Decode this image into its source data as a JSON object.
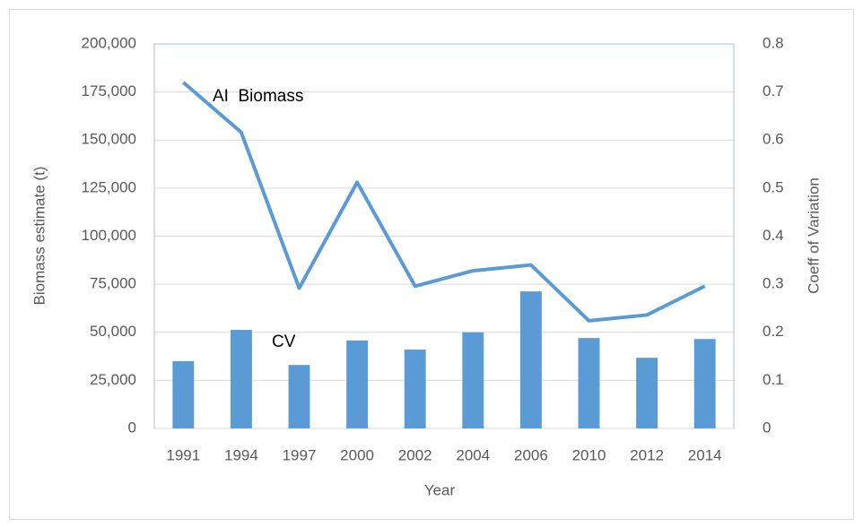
{
  "chart_data": {
    "type": "bar-line",
    "categories": [
      "1991",
      "1994",
      "1997",
      "2000",
      "2002",
      "2004",
      "2006",
      "2010",
      "2012",
      "2014"
    ],
    "series": [
      {
        "name": "CV",
        "type": "bar",
        "axis": "y2",
        "color": "#5b9bd5",
        "values": [
          0.14,
          0.205,
          0.132,
          0.183,
          0.164,
          0.2,
          0.285,
          0.188,
          0.147,
          0.186
        ]
      },
      {
        "name": "AI  Biomass",
        "type": "line",
        "axis": "y",
        "color": "#5b9bd5",
        "values": [
          180000,
          154000,
          73000,
          128000,
          74000,
          82000,
          85000,
          56000,
          59000,
          74000
        ]
      }
    ],
    "xlabel": "Year",
    "ylabel": "Biomass estimate (t)",
    "y2label": "Coeff of Variation",
    "ylim": [
      0,
      200000
    ],
    "yticks": [
      0,
      {
        "value": 25000,
        "label": "25,000"
      },
      {
        "value": 50000,
        "label": "50,000"
      },
      {
        "value": 75000,
        "label": "75,000"
      },
      {
        "value": 100000,
        "label": "100,000"
      },
      {
        "value": 125000,
        "label": "125,000"
      },
      {
        "value": 150000,
        "label": "150,000"
      },
      {
        "value": 175000,
        "label": "175,000"
      },
      {
        "value": 200000,
        "label": "200,000"
      }
    ],
    "y2lim": [
      0,
      0.8
    ],
    "y2ticks": [
      0,
      0.1,
      0.2,
      0.3,
      0.4,
      0.5,
      0.6,
      0.7,
      0.8
    ],
    "grid": true
  }
}
